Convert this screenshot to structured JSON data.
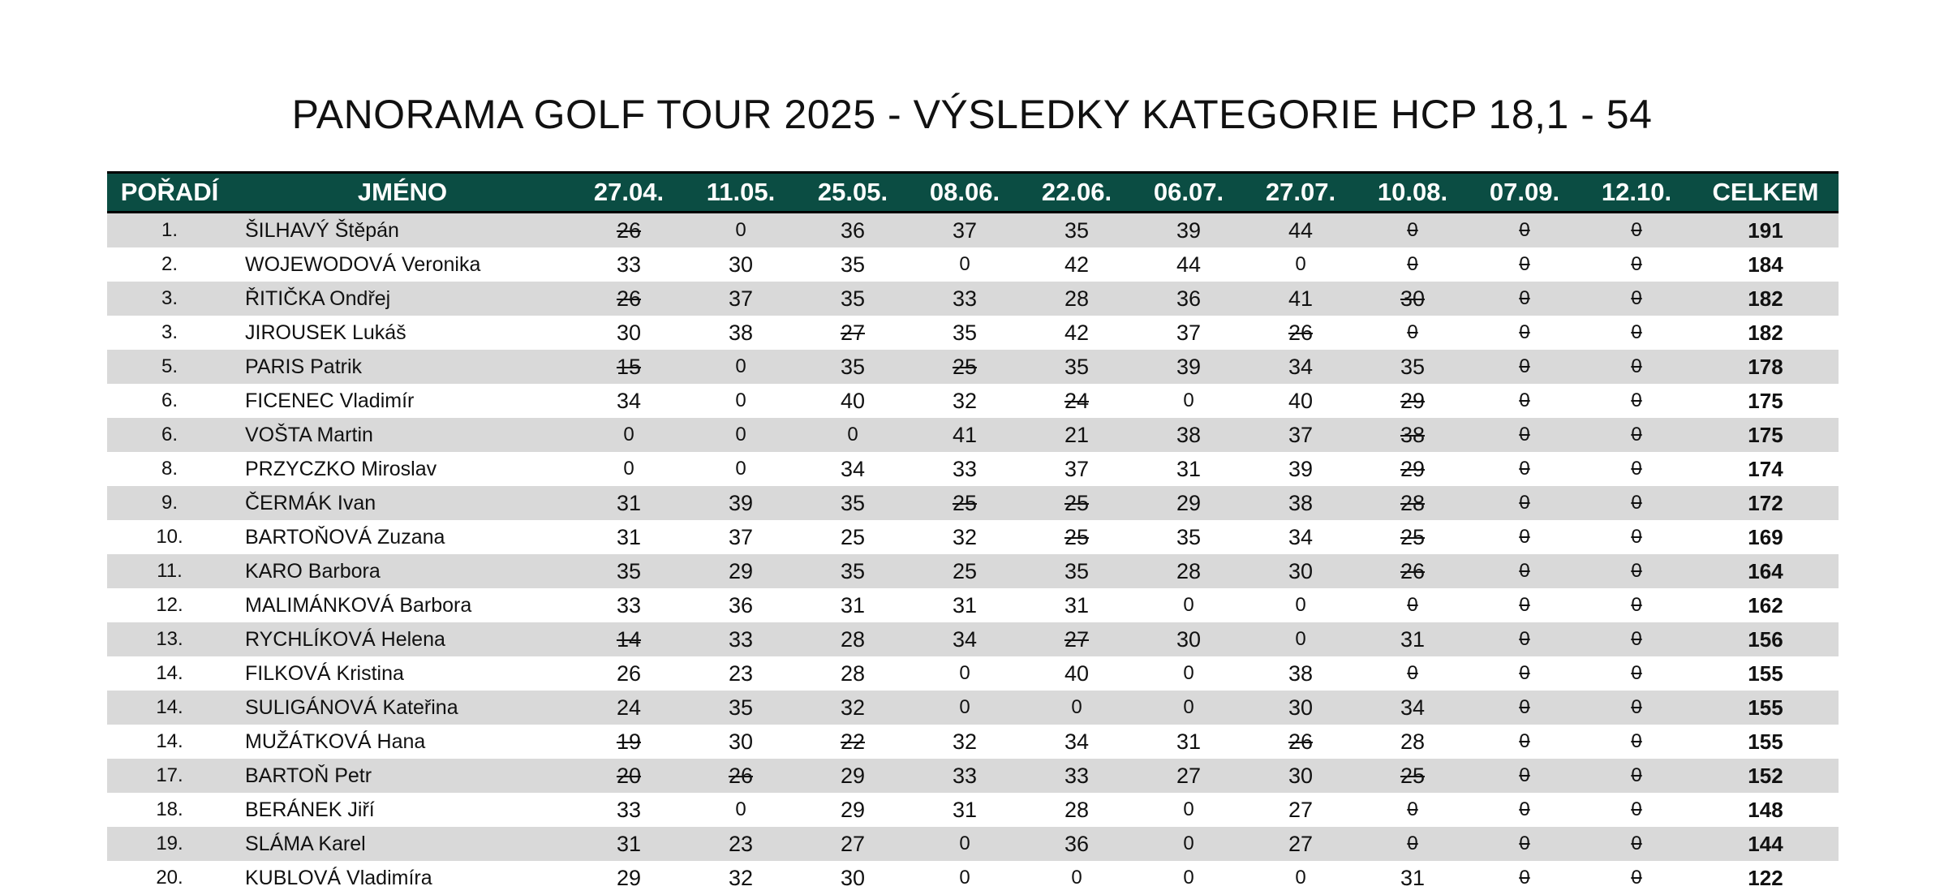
{
  "title": "PANORAMA GOLF TOUR 2025 - VÝSLEDKY KATEGORIE HCP 18,1 - 54",
  "colors": {
    "header_bg": "#0b4d43",
    "header_text": "#ffffff",
    "row_alt_bg": "#d9d9d9"
  },
  "headers": {
    "rank": "POŘADÍ",
    "name": "JMÉNO",
    "rounds": [
      "27.04.",
      "11.05.",
      "25.05.",
      "08.06.",
      "22.06.",
      "06.07.",
      "27.07.",
      "10.08.",
      "07.09.",
      "12.10."
    ],
    "total": "CELKEM"
  },
  "rows": [
    {
      "rank": "1.",
      "name": "ŠILHAVÝ Štěpán",
      "scores": [
        {
          "v": "26",
          "s": true
        },
        {
          "v": "0",
          "s": false
        },
        {
          "v": "36",
          "s": false
        },
        {
          "v": "37",
          "s": false
        },
        {
          "v": "35",
          "s": false
        },
        {
          "v": "39",
          "s": false
        },
        {
          "v": "44",
          "s": false
        },
        {
          "v": "0",
          "s": true
        },
        {
          "v": "0",
          "s": true
        },
        {
          "v": "0",
          "s": true
        }
      ],
      "total": "191"
    },
    {
      "rank": "2.",
      "name": "WOJEWODOVÁ Veronika",
      "scores": [
        {
          "v": "33",
          "s": false
        },
        {
          "v": "30",
          "s": false
        },
        {
          "v": "35",
          "s": false
        },
        {
          "v": "0",
          "s": false
        },
        {
          "v": "42",
          "s": false
        },
        {
          "v": "44",
          "s": false
        },
        {
          "v": "0",
          "s": false
        },
        {
          "v": "0",
          "s": true
        },
        {
          "v": "0",
          "s": true
        },
        {
          "v": "0",
          "s": true
        }
      ],
      "total": "184"
    },
    {
      "rank": "3.",
      "name": "ŘITIČKA Ondřej",
      "scores": [
        {
          "v": "26",
          "s": true
        },
        {
          "v": "37",
          "s": false
        },
        {
          "v": "35",
          "s": false
        },
        {
          "v": "33",
          "s": false
        },
        {
          "v": "28",
          "s": false
        },
        {
          "v": "36",
          "s": false
        },
        {
          "v": "41",
          "s": false
        },
        {
          "v": "30",
          "s": true
        },
        {
          "v": "0",
          "s": true
        },
        {
          "v": "0",
          "s": true
        }
      ],
      "total": "182"
    },
    {
      "rank": "3.",
      "name": "JIROUSEK Lukáš",
      "scores": [
        {
          "v": "30",
          "s": false
        },
        {
          "v": "38",
          "s": false
        },
        {
          "v": "27",
          "s": true
        },
        {
          "v": "35",
          "s": false
        },
        {
          "v": "42",
          "s": false
        },
        {
          "v": "37",
          "s": false
        },
        {
          "v": "26",
          "s": true
        },
        {
          "v": "0",
          "s": true
        },
        {
          "v": "0",
          "s": true
        },
        {
          "v": "0",
          "s": true
        }
      ],
      "total": "182"
    },
    {
      "rank": "5.",
      "name": "PARIS Patrik",
      "scores": [
        {
          "v": "15",
          "s": true
        },
        {
          "v": "0",
          "s": false
        },
        {
          "v": "35",
          "s": false
        },
        {
          "v": "25",
          "s": true
        },
        {
          "v": "35",
          "s": false
        },
        {
          "v": "39",
          "s": false
        },
        {
          "v": "34",
          "s": false
        },
        {
          "v": "35",
          "s": false
        },
        {
          "v": "0",
          "s": true
        },
        {
          "v": "0",
          "s": true
        }
      ],
      "total": "178"
    },
    {
      "rank": "6.",
      "name": "FICENEC Vladimír",
      "scores": [
        {
          "v": "34",
          "s": false
        },
        {
          "v": "0",
          "s": false
        },
        {
          "v": "40",
          "s": false
        },
        {
          "v": "32",
          "s": false
        },
        {
          "v": "24",
          "s": true
        },
        {
          "v": "0",
          "s": false
        },
        {
          "v": "40",
          "s": false
        },
        {
          "v": "29",
          "s": true
        },
        {
          "v": "0",
          "s": true
        },
        {
          "v": "0",
          "s": true
        }
      ],
      "total": "175"
    },
    {
      "rank": "6.",
      "name": "VOŠTA Martin",
      "scores": [
        {
          "v": "0",
          "s": false
        },
        {
          "v": "0",
          "s": false
        },
        {
          "v": "0",
          "s": false
        },
        {
          "v": "41",
          "s": false
        },
        {
          "v": "21",
          "s": false
        },
        {
          "v": "38",
          "s": false
        },
        {
          "v": "37",
          "s": false
        },
        {
          "v": "38",
          "s": true
        },
        {
          "v": "0",
          "s": true
        },
        {
          "v": "0",
          "s": true
        }
      ],
      "total": "175"
    },
    {
      "rank": "8.",
      "name": "PRZYCZKO Miroslav",
      "scores": [
        {
          "v": "0",
          "s": false
        },
        {
          "v": "0",
          "s": false
        },
        {
          "v": "34",
          "s": false
        },
        {
          "v": "33",
          "s": false
        },
        {
          "v": "37",
          "s": false
        },
        {
          "v": "31",
          "s": false
        },
        {
          "v": "39",
          "s": false
        },
        {
          "v": "29",
          "s": true
        },
        {
          "v": "0",
          "s": true
        },
        {
          "v": "0",
          "s": true
        }
      ],
      "total": "174"
    },
    {
      "rank": "9.",
      "name": "ČERMÁK Ivan",
      "scores": [
        {
          "v": "31",
          "s": false
        },
        {
          "v": "39",
          "s": false
        },
        {
          "v": "35",
          "s": false
        },
        {
          "v": "25",
          "s": true
        },
        {
          "v": "25",
          "s": true
        },
        {
          "v": "29",
          "s": false
        },
        {
          "v": "38",
          "s": false
        },
        {
          "v": "28",
          "s": true
        },
        {
          "v": "0",
          "s": true
        },
        {
          "v": "0",
          "s": true
        }
      ],
      "total": "172"
    },
    {
      "rank": "10.",
      "name": "BARTOŇOVÁ Zuzana",
      "scores": [
        {
          "v": "31",
          "s": false
        },
        {
          "v": "37",
          "s": false
        },
        {
          "v": "25",
          "s": false
        },
        {
          "v": "32",
          "s": false
        },
        {
          "v": "25",
          "s": true
        },
        {
          "v": "35",
          "s": false
        },
        {
          "v": "34",
          "s": false
        },
        {
          "v": "25",
          "s": true
        },
        {
          "v": "0",
          "s": true
        },
        {
          "v": "0",
          "s": true
        }
      ],
      "total": "169"
    },
    {
      "rank": "11.",
      "name": "KARO Barbora",
      "scores": [
        {
          "v": "35",
          "s": false
        },
        {
          "v": "29",
          "s": false
        },
        {
          "v": "35",
          "s": false
        },
        {
          "v": "25",
          "s": false
        },
        {
          "v": "35",
          "s": false
        },
        {
          "v": "28",
          "s": false
        },
        {
          "v": "30",
          "s": false
        },
        {
          "v": "26",
          "s": true
        },
        {
          "v": "0",
          "s": true
        },
        {
          "v": "0",
          "s": true
        }
      ],
      "total": "164"
    },
    {
      "rank": "12.",
      "name": "MALIMÁNKOVÁ Barbora",
      "scores": [
        {
          "v": "33",
          "s": false
        },
        {
          "v": "36",
          "s": false
        },
        {
          "v": "31",
          "s": false
        },
        {
          "v": "31",
          "s": false
        },
        {
          "v": "31",
          "s": false
        },
        {
          "v": "0",
          "s": false
        },
        {
          "v": "0",
          "s": false
        },
        {
          "v": "0",
          "s": true
        },
        {
          "v": "0",
          "s": true
        },
        {
          "v": "0",
          "s": true
        }
      ],
      "total": "162"
    },
    {
      "rank": "13.",
      "name": "RYCHLÍKOVÁ Helena",
      "scores": [
        {
          "v": "14",
          "s": true
        },
        {
          "v": "33",
          "s": false
        },
        {
          "v": "28",
          "s": false
        },
        {
          "v": "34",
          "s": false
        },
        {
          "v": "27",
          "s": true
        },
        {
          "v": "30",
          "s": false
        },
        {
          "v": "0",
          "s": false
        },
        {
          "v": "31",
          "s": false
        },
        {
          "v": "0",
          "s": true
        },
        {
          "v": "0",
          "s": true
        }
      ],
      "total": "156"
    },
    {
      "rank": "14.",
      "name": "FILKOVÁ Kristina",
      "scores": [
        {
          "v": "26",
          "s": false
        },
        {
          "v": "23",
          "s": false
        },
        {
          "v": "28",
          "s": false
        },
        {
          "v": "0",
          "s": false
        },
        {
          "v": "40",
          "s": false
        },
        {
          "v": "0",
          "s": false
        },
        {
          "v": "38",
          "s": false
        },
        {
          "v": "0",
          "s": true
        },
        {
          "v": "0",
          "s": true
        },
        {
          "v": "0",
          "s": true
        }
      ],
      "total": "155"
    },
    {
      "rank": "14.",
      "name": "SULIGÁNOVÁ Kateřina",
      "scores": [
        {
          "v": "24",
          "s": false
        },
        {
          "v": "35",
          "s": false
        },
        {
          "v": "32",
          "s": false
        },
        {
          "v": "0",
          "s": false
        },
        {
          "v": "0",
          "s": false
        },
        {
          "v": "0",
          "s": false
        },
        {
          "v": "30",
          "s": false
        },
        {
          "v": "34",
          "s": false
        },
        {
          "v": "0",
          "s": true
        },
        {
          "v": "0",
          "s": true
        }
      ],
      "total": "155"
    },
    {
      "rank": "14.",
      "name": "MUŽÁTKOVÁ Hana",
      "scores": [
        {
          "v": "19",
          "s": true
        },
        {
          "v": "30",
          "s": false
        },
        {
          "v": "22",
          "s": true
        },
        {
          "v": "32",
          "s": false
        },
        {
          "v": "34",
          "s": false
        },
        {
          "v": "31",
          "s": false
        },
        {
          "v": "26",
          "s": true
        },
        {
          "v": "28",
          "s": false
        },
        {
          "v": "0",
          "s": true
        },
        {
          "v": "0",
          "s": true
        }
      ],
      "total": "155"
    },
    {
      "rank": "17.",
      "name": "BARTOŇ Petr",
      "scores": [
        {
          "v": "20",
          "s": true
        },
        {
          "v": "26",
          "s": true
        },
        {
          "v": "29",
          "s": false
        },
        {
          "v": "33",
          "s": false
        },
        {
          "v": "33",
          "s": false
        },
        {
          "v": "27",
          "s": false
        },
        {
          "v": "30",
          "s": false
        },
        {
          "v": "25",
          "s": true
        },
        {
          "v": "0",
          "s": true
        },
        {
          "v": "0",
          "s": true
        }
      ],
      "total": "152"
    },
    {
      "rank": "18.",
      "name": "BERÁNEK Jiří",
      "scores": [
        {
          "v": "33",
          "s": false
        },
        {
          "v": "0",
          "s": false
        },
        {
          "v": "29",
          "s": false
        },
        {
          "v": "31",
          "s": false
        },
        {
          "v": "28",
          "s": false
        },
        {
          "v": "0",
          "s": false
        },
        {
          "v": "27",
          "s": false
        },
        {
          "v": "0",
          "s": true
        },
        {
          "v": "0",
          "s": true
        },
        {
          "v": "0",
          "s": true
        }
      ],
      "total": "148"
    },
    {
      "rank": "19.",
      "name": "SLÁMA Karel",
      "scores": [
        {
          "v": "31",
          "s": false
        },
        {
          "v": "23",
          "s": false
        },
        {
          "v": "27",
          "s": false
        },
        {
          "v": "0",
          "s": false
        },
        {
          "v": "36",
          "s": false
        },
        {
          "v": "0",
          "s": false
        },
        {
          "v": "27",
          "s": false
        },
        {
          "v": "0",
          "s": true
        },
        {
          "v": "0",
          "s": true
        },
        {
          "v": "0",
          "s": true
        }
      ],
      "total": "144"
    },
    {
      "rank": "20.",
      "name": "KUBLOVÁ Vladimíra",
      "scores": [
        {
          "v": "29",
          "s": false
        },
        {
          "v": "32",
          "s": false
        },
        {
          "v": "30",
          "s": false
        },
        {
          "v": "0",
          "s": false
        },
        {
          "v": "0",
          "s": false
        },
        {
          "v": "0",
          "s": false
        },
        {
          "v": "0",
          "s": false
        },
        {
          "v": "31",
          "s": false
        },
        {
          "v": "0",
          "s": true
        },
        {
          "v": "0",
          "s": true
        }
      ],
      "total": "122"
    }
  ]
}
